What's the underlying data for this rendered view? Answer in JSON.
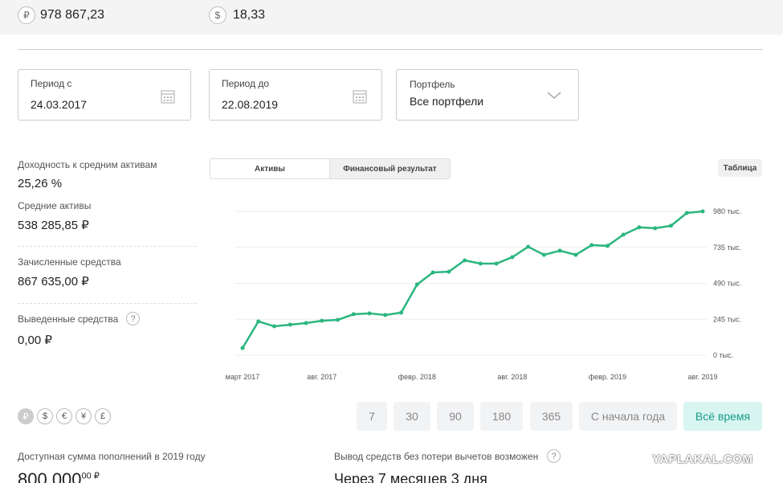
{
  "header": {
    "rub_icon": "₽",
    "rub_value": "978 867,23",
    "usd_icon": "$",
    "usd_value": "18,33"
  },
  "filters": [
    {
      "label": "Период с",
      "value": "24.03.2017"
    },
    {
      "label": "Период до",
      "value": "22.08.2019"
    },
    {
      "label": "Портфель",
      "value": "Все портфели"
    }
  ],
  "stats": [
    {
      "label": "Доходность к средним активам",
      "value": "25,26 %"
    },
    {
      "label": "Средние активы",
      "value": "538 285,85 ₽"
    },
    {
      "label": "Зачисленные средства",
      "value": "867 635,00 ₽"
    },
    {
      "label": "Выведенные средства",
      "value": "0,00 ₽"
    }
  ],
  "help_icon": "?",
  "tabs": [
    "Активы",
    "Финансовый результат"
  ],
  "table_button": "Таблица",
  "chart_data": {
    "type": "line",
    "categories": [
      "март 2017",
      null,
      null,
      null,
      null,
      "авг. 2017",
      null,
      null,
      null,
      null,
      null,
      "февр. 2018",
      null,
      null,
      null,
      null,
      null,
      "авг. 2018",
      null,
      null,
      null,
      null,
      null,
      "февр. 2019",
      null,
      null,
      null,
      null,
      null,
      "авг. 2019"
    ],
    "series": [
      {
        "color": "#2bb67f",
        "values": [
          49000,
          230000,
          197000,
          208000,
          219000,
          235000,
          241000,
          279000,
          285000,
          274000,
          290000,
          482000,
          564000,
          569000,
          646000,
          624000,
          624000,
          668000,
          739000,
          684000,
          712000,
          684000,
          750000,
          745000,
          821000,
          871000,
          865000,
          882000,
          969000,
          980000
        ]
      }
    ],
    "ylim": [
      0,
      980000
    ],
    "yticks": [
      {
        "value": 0,
        "label": "0 тыс."
      },
      {
        "value": 245000,
        "label": "245 тыс."
      },
      {
        "value": 490000,
        "label": "490 тыс."
      },
      {
        "value": 735000,
        "label": "735 тыс."
      },
      {
        "value": 980000,
        "label": "980 тыс."
      }
    ],
    "grid": true
  },
  "currencies": [
    "₽",
    "$",
    "€",
    "¥",
    "£"
  ],
  "periods": [
    "7",
    "30",
    "90",
    "180",
    "365",
    "С начала года",
    "Всё время"
  ],
  "bottom": {
    "left_label": "Доступная сумма пополнений в 2019 году",
    "left_value": "800 000",
    "left_value_cents": "00 ₽",
    "right_label": "Вывод средств без потери вычетов возможен",
    "right_value": "Через 7 месяцев 3 дня"
  },
  "watermark": "YAPLAKAL.COM"
}
